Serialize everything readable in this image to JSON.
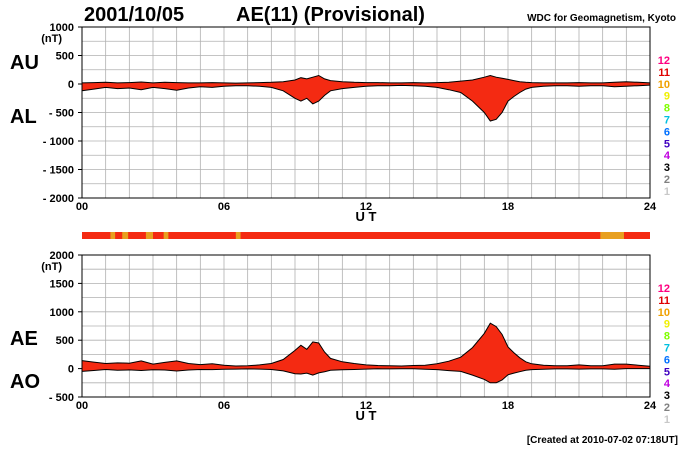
{
  "header": {
    "date": "2001/10/05",
    "title": "AE(11) (Provisional)",
    "org": "WDC for Geomagnetism, Kyoto"
  },
  "footer": "[Created at 2010-07-02 07:18UT]",
  "labels": {
    "au": "AU",
    "al": "AL",
    "ae": "AE",
    "ao": "AO",
    "xlabel": "U T",
    "unit": "(nT)"
  },
  "legend": {
    "items": [
      "12",
      "11",
      "10",
      "9",
      "8",
      "7",
      "6",
      "5",
      "4",
      "3",
      "2",
      "1"
    ],
    "colors": [
      "#ff0080",
      "#e00000",
      "#f0a000",
      "#f0f000",
      "#80ff00",
      "#00c0e0",
      "#0070ff",
      "#4000c0",
      "#c000e0",
      "#000000",
      "#808080",
      "#c8c8c8"
    ]
  },
  "colors": {
    "fill": "#f42a12",
    "fill_alt": "#e8a020",
    "grid": "#b0b0b0",
    "line": "#000000"
  },
  "chart_data": [
    {
      "type": "area",
      "panel": "AU/AL",
      "xlabel": "U T",
      "ylabel": "(nT)",
      "xlim": [
        0,
        24
      ],
      "ylim": [
        -2000,
        1000
      ],
      "xticks": [
        "00",
        "06",
        "12",
        "18",
        "24"
      ],
      "yticks": [
        "1000",
        "500",
        "0",
        "- 500",
        "- 1000",
        "- 1500",
        "- 2000"
      ],
      "x": [
        0,
        0.5,
        1,
        1.5,
        2,
        2.5,
        3,
        3.5,
        4,
        4.5,
        5,
        5.5,
        6,
        6.5,
        7,
        7.5,
        8,
        8.5,
        9,
        9.25,
        9.5,
        9.75,
        10,
        10.25,
        10.5,
        11,
        11.5,
        12,
        12.5,
        13,
        13.5,
        14,
        14.5,
        15,
        15.5,
        16,
        16.5,
        17,
        17.25,
        17.5,
        17.75,
        18,
        18.25,
        18.5,
        18.75,
        19,
        19.5,
        20,
        20.5,
        21,
        21.5,
        22,
        22.5,
        23,
        23.5,
        24
      ],
      "series": [
        {
          "name": "AU",
          "values": [
            20,
            25,
            30,
            20,
            25,
            35,
            20,
            30,
            25,
            20,
            20,
            25,
            20,
            15,
            20,
            25,
            30,
            40,
            70,
            110,
            90,
            120,
            150,
            90,
            60,
            40,
            30,
            25,
            25,
            20,
            20,
            25,
            20,
            25,
            30,
            50,
            70,
            120,
            150,
            120,
            100,
            80,
            60,
            40,
            30,
            25,
            20,
            20,
            20,
            25,
            20,
            20,
            30,
            40,
            30,
            20
          ]
        },
        {
          "name": "AL",
          "values": [
            -120,
            -90,
            -60,
            -80,
            -70,
            -100,
            -60,
            -80,
            -110,
            -70,
            -50,
            -60,
            -40,
            -30,
            -30,
            -40,
            -60,
            -120,
            -250,
            -300,
            -250,
            -350,
            -300,
            -200,
            -120,
            -80,
            -60,
            -40,
            -30,
            -30,
            -25,
            -30,
            -40,
            -60,
            -100,
            -150,
            -300,
            -500,
            -650,
            -620,
            -500,
            -300,
            -220,
            -150,
            -90,
            -60,
            -40,
            -30,
            -30,
            -40,
            -30,
            -30,
            -50,
            -40,
            -30,
            -20
          ]
        }
      ]
    },
    {
      "type": "area",
      "panel": "AE/AO",
      "xlabel": "U T",
      "ylabel": "(nT)",
      "xlim": [
        0,
        24
      ],
      "ylim": [
        -500,
        2000
      ],
      "xticks": [
        "00",
        "06",
        "12",
        "18",
        "24"
      ],
      "yticks": [
        "2000",
        "1500",
        "1000",
        "500",
        "0",
        "- 500"
      ],
      "x": [
        0,
        0.5,
        1,
        1.5,
        2,
        2.5,
        3,
        3.5,
        4,
        4.5,
        5,
        5.5,
        6,
        6.5,
        7,
        7.5,
        8,
        8.5,
        9,
        9.25,
        9.5,
        9.75,
        10,
        10.25,
        10.5,
        11,
        11.5,
        12,
        12.5,
        13,
        13.5,
        14,
        14.5,
        15,
        15.5,
        16,
        16.5,
        17,
        17.25,
        17.5,
        17.75,
        18,
        18.25,
        18.5,
        18.75,
        19,
        19.5,
        20,
        20.5,
        21,
        21.5,
        22,
        22.5,
        23,
        23.5,
        24
      ],
      "series": [
        {
          "name": "AE",
          "values": [
            140,
            115,
            90,
            100,
            95,
            135,
            80,
            110,
            135,
            90,
            70,
            85,
            60,
            45,
            50,
            65,
            90,
            160,
            320,
            410,
            340,
            470,
            450,
            290,
            180,
            120,
            90,
            65,
            55,
            50,
            45,
            55,
            60,
            85,
            130,
            200,
            370,
            620,
            800,
            740,
            600,
            380,
            280,
            190,
            120,
            85,
            60,
            50,
            50,
            65,
            50,
            50,
            80,
            80,
            60,
            40
          ]
        },
        {
          "name": "AO",
          "values": [
            -50,
            -33,
            -15,
            -30,
            -23,
            -33,
            -20,
            -25,
            -43,
            -25,
            -15,
            -18,
            -10,
            -8,
            -5,
            -8,
            -15,
            -40,
            -90,
            -95,
            -80,
            -115,
            -75,
            -55,
            -30,
            -20,
            -15,
            -8,
            -3,
            -5,
            -3,
            -3,
            -10,
            -18,
            -35,
            -50,
            -115,
            -190,
            -250,
            -250,
            -200,
            -110,
            -80,
            -55,
            -30,
            -18,
            -10,
            -5,
            -5,
            -8,
            -5,
            -5,
            -10,
            0,
            0,
            0
          ]
        }
      ]
    }
  ],
  "activity_bar": {
    "base_color": "#f42a12",
    "alt_color": "#e8a020",
    "segments": [
      [
        1.2,
        1.4
      ],
      [
        1.7,
        1.95
      ],
      [
        2.7,
        3.0
      ],
      [
        3.45,
        3.65
      ],
      [
        6.5,
        6.7
      ],
      [
        21.9,
        22.9
      ]
    ]
  }
}
